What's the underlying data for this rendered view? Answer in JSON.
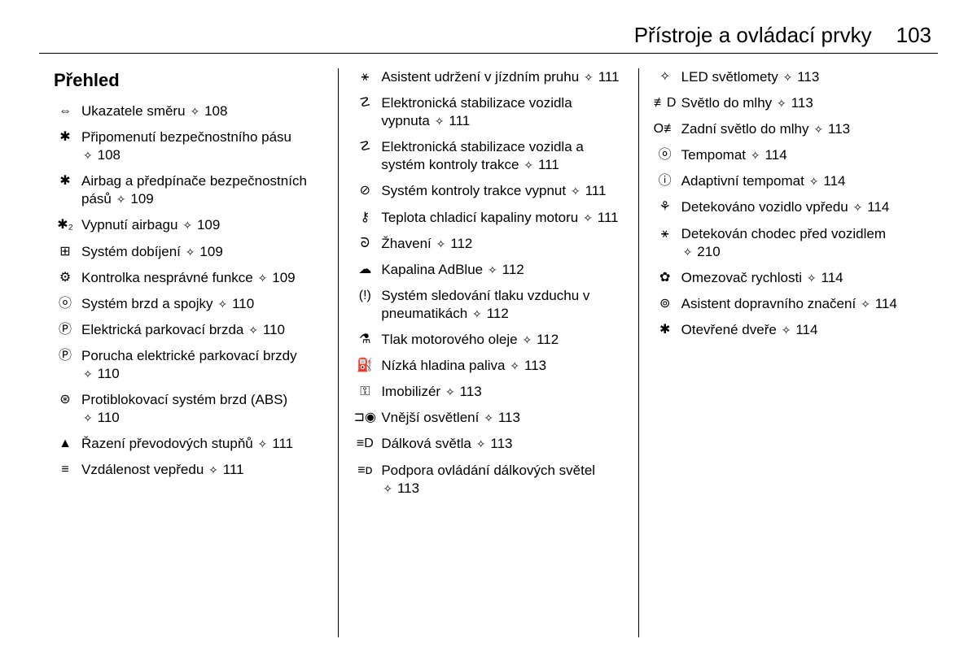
{
  "header": {
    "chapter": "Přístroje a ovládací prvky",
    "page": "103"
  },
  "sectionTitle": "Přehled",
  "linkGlyph": "✧",
  "columns": [
    [
      {
        "icon": "⇔",
        "text": "Ukazatele směru",
        "page": "108"
      },
      {
        "icon": "✱",
        "text": "Připomenutí bezpečnostního pásu",
        "page": "108"
      },
      {
        "icon": "✱",
        "text": "Airbag a předpínače bezpeč­nostních pásů",
        "page": "109"
      },
      {
        "icon": "✱₂",
        "text": "Vypnutí airbagu",
        "page": "109"
      },
      {
        "icon": "⊞",
        "text": "Systém dobíjení",
        "page": "109"
      },
      {
        "icon": "⚙",
        "text": "Kontrolka nesprávné funkce",
        "page": "109"
      },
      {
        "icon": "ⓞ",
        "text": "Systém brzd a spojky",
        "page": "110"
      },
      {
        "icon": "Ⓟ",
        "text": "Elektrická parkovací brzda",
        "page": "110"
      },
      {
        "icon": "Ⓟ",
        "text": "Porucha elektrické parkovací brzdy",
        "page": "110"
      },
      {
        "icon": "⊛",
        "text": "Protiblokovací systém brzd (ABS)",
        "page": "110"
      },
      {
        "icon": "▲",
        "text": "Řazení převodových stupňů",
        "page": "111"
      },
      {
        "icon": "≡",
        "text": "Vzdálenost vepředu",
        "page": "111"
      }
    ],
    [
      {
        "icon": "⚹",
        "text": "Asistent udržení v jízdním pruhu",
        "page": "111"
      },
      {
        "icon": "☡",
        "text": "Elektronická stabilizace vozidla vypnuta",
        "page": "111"
      },
      {
        "icon": "☡",
        "text": "Elektronická stabilizace vozidla a systém kontroly trakce",
        "page": "111"
      },
      {
        "icon": "⊘",
        "text": "Systém kontroly trakce vypnut",
        "page": "111"
      },
      {
        "icon": "⚷",
        "text": "Teplota chladicí kapaliny motoru",
        "page": "111"
      },
      {
        "icon": "ᘐ",
        "text": "Žhavení",
        "page": "112"
      },
      {
        "icon": "☁",
        "text": "Kapalina AdBlue",
        "page": "112"
      },
      {
        "icon": "(!)",
        "text": "Systém sledování tlaku vzduchu v pneumatikách",
        "page": "112"
      },
      {
        "icon": "⚗",
        "text": "Tlak motorového oleje",
        "page": "112"
      },
      {
        "icon": "⛽",
        "text": "Nízká hladina paliva",
        "page": "113"
      },
      {
        "icon": "⚿",
        "text": "Imobilizér",
        "page": "113"
      },
      {
        "icon": "⊐◉",
        "text": "Vnější osvětlení",
        "page": "113"
      },
      {
        "icon": "≡D",
        "text": "Dálková světla",
        "page": "113"
      },
      {
        "icon": "≡ᴅ",
        "text": "Podpora ovládání dálkových světel",
        "page": "113"
      }
    ],
    [
      {
        "icon": "✧",
        "text": "LED světlomety",
        "page": "113"
      },
      {
        "icon": "≢D",
        "text": "Světlo do mlhy",
        "page": "113"
      },
      {
        "icon": "O≢",
        "text": "Zadní světlo do mlhy",
        "page": "113"
      },
      {
        "icon": "ⓞ",
        "text": "Tempomat",
        "page": "114"
      },
      {
        "icon": "ⓘ",
        "text": "Adaptivní tempomat",
        "page": "114"
      },
      {
        "icon": "⚘",
        "text": "Detekováno vozidlo vpředu",
        "page": "114"
      },
      {
        "icon": "⚹",
        "text": "Detekován chodec před vozi­dlem",
        "page": "210"
      },
      {
        "icon": "✿",
        "text": "Omezovač rychlosti",
        "page": "114"
      },
      {
        "icon": "⊚",
        "text": "Asistent dopravního značení",
        "page": "114"
      },
      {
        "icon": "✱",
        "text": "Otevřené dveře",
        "page": "114"
      }
    ]
  ]
}
